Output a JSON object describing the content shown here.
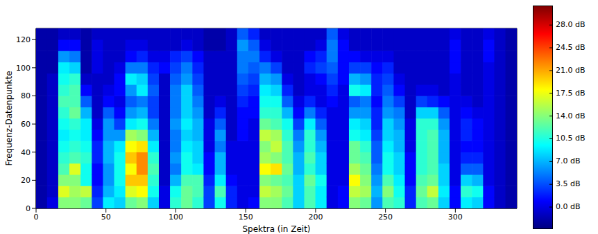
{
  "chart_data": {
    "type": "heatmap",
    "color": "jet",
    "x_label": "Spektra (in Zeit)",
    "y_label": "Frequenz-Datenpunkte",
    "xlim": [
      0,
      344
    ],
    "xticks": [
      0,
      50,
      100,
      150,
      200,
      250,
      300
    ],
    "ylim": [
      0,
      128
    ],
    "yticks": [
      0,
      20,
      40,
      60,
      80,
      100,
      120
    ],
    "x_bins": [
      0,
      8,
      16,
      24,
      32,
      40,
      48,
      56,
      64,
      72,
      80,
      88,
      96,
      104,
      112,
      120,
      128,
      136,
      144,
      152,
      160,
      168,
      176,
      184,
      192,
      200,
      208,
      216,
      224,
      232,
      240,
      248,
      256,
      264,
      272,
      280,
      288,
      296,
      304,
      312,
      320,
      328,
      336,
      344
    ],
    "y_bins": [
      0,
      8,
      16,
      24,
      32,
      40,
      48,
      56,
      64,
      72,
      80,
      88,
      96,
      104,
      112,
      120,
      128
    ],
    "cells": [
      [
        -2,
        -2,
        -2,
        -2,
        -2,
        -2,
        -2,
        -2,
        -2,
        -2,
        -2,
        -2,
        -2,
        -2,
        -2,
        -2
      ],
      [
        0,
        -1,
        -1,
        -1,
        -1,
        -1,
        -1,
        -1,
        -1,
        -1,
        -1,
        -1,
        -2,
        -2,
        -2,
        -2
      ],
      [
        14,
        17,
        14,
        12,
        11,
        10,
        9,
        10,
        11,
        12,
        11,
        10,
        9,
        6,
        1,
        -1
      ],
      [
        14,
        15,
        14,
        17,
        12,
        11,
        10,
        11,
        13,
        12,
        12,
        11,
        8,
        5,
        1,
        -1
      ],
      [
        13,
        16,
        10,
        10,
        11,
        10,
        9,
        9,
        7,
        4,
        1,
        -1,
        -2,
        -2,
        -2,
        -2
      ],
      [
        3,
        2,
        1,
        1,
        2,
        2,
        1,
        0,
        -1,
        -1,
        -1,
        -1,
        0,
        0,
        0,
        -1
      ],
      [
        9,
        7,
        6,
        6,
        7,
        7,
        6,
        6,
        4,
        1,
        0,
        -1,
        -1,
        -1,
        -1,
        -1
      ],
      [
        8,
        9,
        10,
        10,
        10,
        9,
        6,
        3,
        1,
        0,
        1,
        1,
        0,
        -1,
        -1,
        -1
      ],
      [
        13,
        17,
        20,
        18,
        20,
        18,
        15,
        9,
        6,
        4,
        6,
        9,
        5,
        1,
        0,
        -1
      ],
      [
        14,
        18,
        20,
        22,
        22,
        19,
        14,
        10,
        7,
        5,
        9,
        8,
        5,
        2,
        0,
        -1
      ],
      [
        8,
        10,
        11,
        12,
        11,
        9,
        7,
        5,
        3,
        3,
        4,
        3,
        2,
        0,
        -1,
        -1
      ],
      [
        0,
        0,
        -1,
        -1,
        -1,
        -1,
        -1,
        -1,
        -1,
        -1,
        -1,
        -1,
        1,
        0,
        -1,
        -1
      ],
      [
        11,
        10,
        7,
        5,
        6,
        5,
        5,
        6,
        5,
        5,
        5,
        4,
        3,
        2,
        -1,
        -1
      ],
      [
        13,
        13,
        12,
        10,
        10,
        9,
        8,
        9,
        8,
        8,
        8,
        6,
        5,
        3,
        0,
        -1
      ],
      [
        11,
        12,
        12,
        9,
        8,
        8,
        7,
        7,
        6,
        5,
        4,
        3,
        2,
        1,
        -1,
        -1
      ],
      [
        3,
        3,
        2,
        1,
        1,
        0,
        0,
        0,
        -1,
        -1,
        -1,
        -1,
        -1,
        -1,
        -2,
        -2
      ],
      [
        10,
        12,
        9,
        7,
        7,
        5,
        6,
        4,
        2,
        0,
        -1,
        -1,
        -1,
        -1,
        -2,
        -2
      ],
      [
        2,
        2,
        1,
        0,
        0,
        0,
        -1,
        -1,
        -1,
        -1,
        -1,
        -1,
        -1,
        -1,
        -1,
        -1
      ],
      [
        0,
        0,
        0,
        0,
        0,
        0,
        1,
        1,
        1,
        2,
        3,
        4,
        5,
        5,
        6,
        4
      ],
      [
        1,
        0,
        0,
        0,
        0,
        0,
        0,
        0,
        1,
        1,
        2,
        3,
        4,
        5,
        4,
        2
      ],
      [
        14,
        16,
        14,
        18,
        15,
        14,
        16,
        13,
        11,
        10,
        9,
        7,
        5,
        2,
        0,
        -1
      ],
      [
        14,
        15,
        13,
        19,
        14,
        16,
        15,
        12,
        11,
        10,
        8,
        6,
        3,
        0,
        -1,
        -1
      ],
      [
        12,
        13,
        12,
        13,
        12,
        12,
        11,
        10,
        7,
        4,
        2,
        0,
        -1,
        -1,
        -1,
        -1
      ],
      [
        8,
        8,
        8,
        7,
        7,
        6,
        5,
        3,
        1,
        0,
        -1,
        -1,
        -1,
        -1,
        -1,
        -1
      ],
      [
        12,
        12,
        13,
        11,
        12,
        11,
        11,
        9,
        5,
        2,
        0,
        0,
        2,
        1,
        -1,
        -1
      ],
      [
        9,
        9,
        10,
        8,
        8,
        7,
        6,
        4,
        2,
        0,
        0,
        1,
        3,
        2,
        0,
        -1
      ],
      [
        0,
        0,
        0,
        0,
        0,
        0,
        0,
        0,
        0,
        1,
        2,
        3,
        4,
        5,
        5,
        4
      ],
      [
        1,
        1,
        0,
        0,
        0,
        0,
        0,
        0,
        0,
        0,
        0,
        1,
        1,
        1,
        1,
        0
      ],
      [
        14,
        16,
        18,
        15,
        13,
        13,
        10,
        9,
        6,
        4,
        10,
        7,
        3,
        1,
        -1,
        -1
      ],
      [
        13,
        15,
        14,
        13,
        12,
        11,
        9,
        8,
        6,
        5,
        9,
        6,
        3,
        0,
        -1,
        -1
      ],
      [
        6,
        7,
        6,
        5,
        4,
        4,
        3,
        2,
        2,
        1,
        2,
        2,
        1,
        0,
        -1,
        -1
      ],
      [
        12,
        14,
        12,
        10,
        10,
        9,
        8,
        8,
        6,
        5,
        4,
        3,
        2,
        0,
        -1,
        -1
      ],
      [
        11,
        10,
        9,
        8,
        8,
        7,
        7,
        6,
        5,
        3,
        1,
        0,
        -1,
        -1,
        -1,
        -1
      ],
      [
        2,
        2,
        1,
        1,
        1,
        0,
        0,
        0,
        -1,
        -1,
        -1,
        -1,
        -1,
        -1,
        -1,
        -1
      ],
      [
        12,
        13,
        12,
        11,
        11,
        11,
        11,
        11,
        8,
        3,
        0,
        -1,
        -1,
        -1,
        -1,
        -1
      ],
      [
        13,
        16,
        13,
        12,
        12,
        12,
        12,
        11,
        8,
        2,
        0,
        -1,
        -1,
        -1,
        -1,
        -1
      ],
      [
        8,
        9,
        8,
        8,
        7,
        7,
        7,
        6,
        4,
        1,
        -1,
        -1,
        -1,
        -1,
        -1,
        -1
      ],
      [
        1,
        1,
        0,
        0,
        0,
        0,
        0,
        0,
        0,
        0,
        0,
        0,
        1,
        1,
        1,
        0
      ],
      [
        9,
        11,
        8,
        4,
        2,
        1,
        2,
        2,
        1,
        0,
        -1,
        -1,
        -1,
        -1,
        -1,
        -1
      ],
      [
        8,
        10,
        7,
        4,
        2,
        1,
        1,
        1,
        0,
        -1,
        -1,
        -1,
        -1,
        -1,
        -1,
        -1
      ],
      [
        1,
        1,
        0,
        0,
        0,
        0,
        0,
        0,
        0,
        0,
        0,
        0,
        0,
        1,
        1,
        0
      ],
      [
        -1,
        -1,
        -1,
        -1,
        -1,
        -1,
        -1,
        -1,
        -1,
        -1,
        -1,
        -1,
        -1,
        -1,
        -1,
        -1
      ],
      [
        -2,
        -2,
        -2,
        -2,
        -2,
        -2,
        -2,
        -2,
        -2,
        -2,
        -2,
        -2,
        -2,
        -2,
        -2,
        -2
      ]
    ],
    "colorbar": {
      "range": [
        -3.4,
        31.0
      ],
      "ticks": [
        {
          "value": 0,
          "label": "0.0 dB"
        },
        {
          "value": 3.5,
          "label": "3.5 dB"
        },
        {
          "value": 7,
          "label": "7.0 dB"
        },
        {
          "value": 10.5,
          "label": "10.5 dB"
        },
        {
          "value": 14,
          "label": "14.0 dB"
        },
        {
          "value": 17.5,
          "label": "17.5 dB"
        },
        {
          "value": 21,
          "label": "21.0 dB"
        },
        {
          "value": 24.5,
          "label": "24.5 dB"
        },
        {
          "value": 28,
          "label": "28.0 dB"
        }
      ]
    }
  }
}
